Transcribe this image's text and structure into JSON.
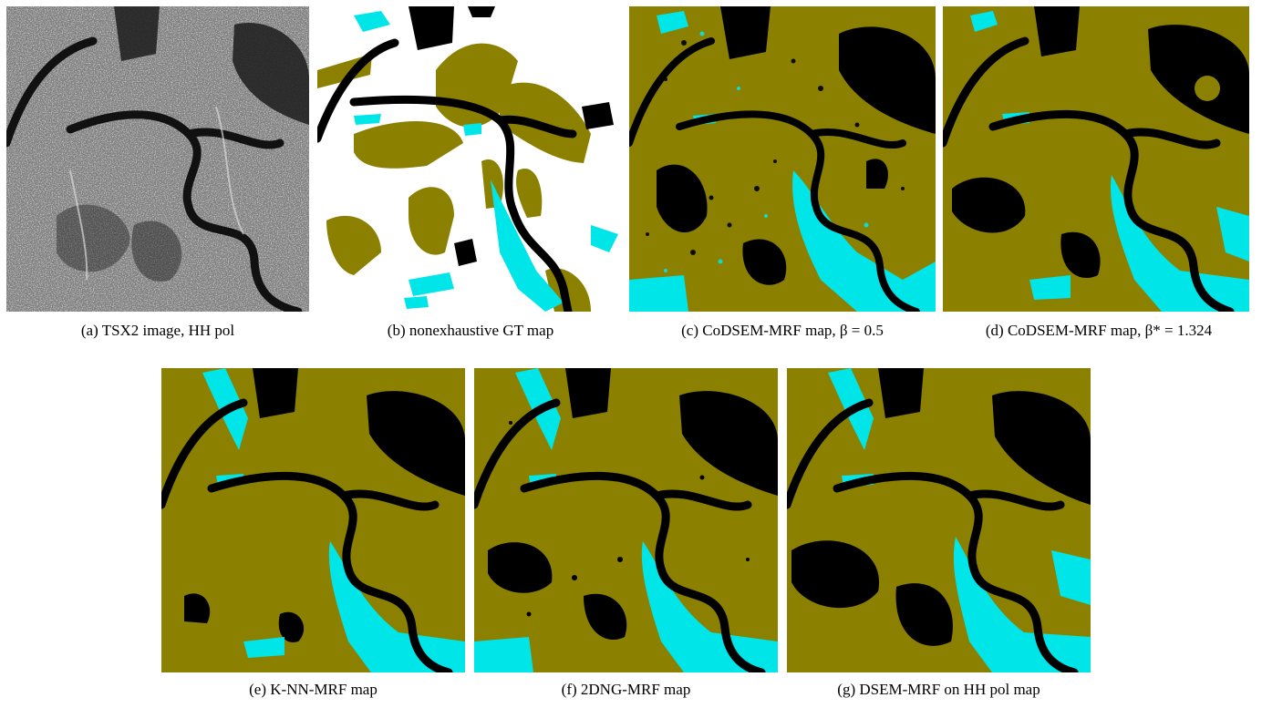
{
  "figure": {
    "panels": [
      {
        "id": "a",
        "label": "(a)",
        "caption": "TSX2 image, HH pol"
      },
      {
        "id": "b",
        "label": "(b)",
        "caption": "nonexhaustive GT map"
      },
      {
        "id": "c",
        "label": "(c)",
        "caption": "CoDSEM-MRF map, β = 0.5"
      },
      {
        "id": "d",
        "label": "(d)",
        "caption": "CoDSEM-MRF map, β* = 1.324"
      },
      {
        "id": "e",
        "label": "(e)",
        "caption": "K-NN-MRF map"
      },
      {
        "id": "f",
        "label": "(f)",
        "caption": "2DNG-MRF map"
      },
      {
        "id": "g",
        "label": "(g)",
        "caption": "DSEM-MRF on HH pol map"
      }
    ],
    "class_colors": {
      "olive": "#8b8000",
      "cyan": "#00e5e8",
      "black": "#000000",
      "white": "#ffffff"
    }
  }
}
